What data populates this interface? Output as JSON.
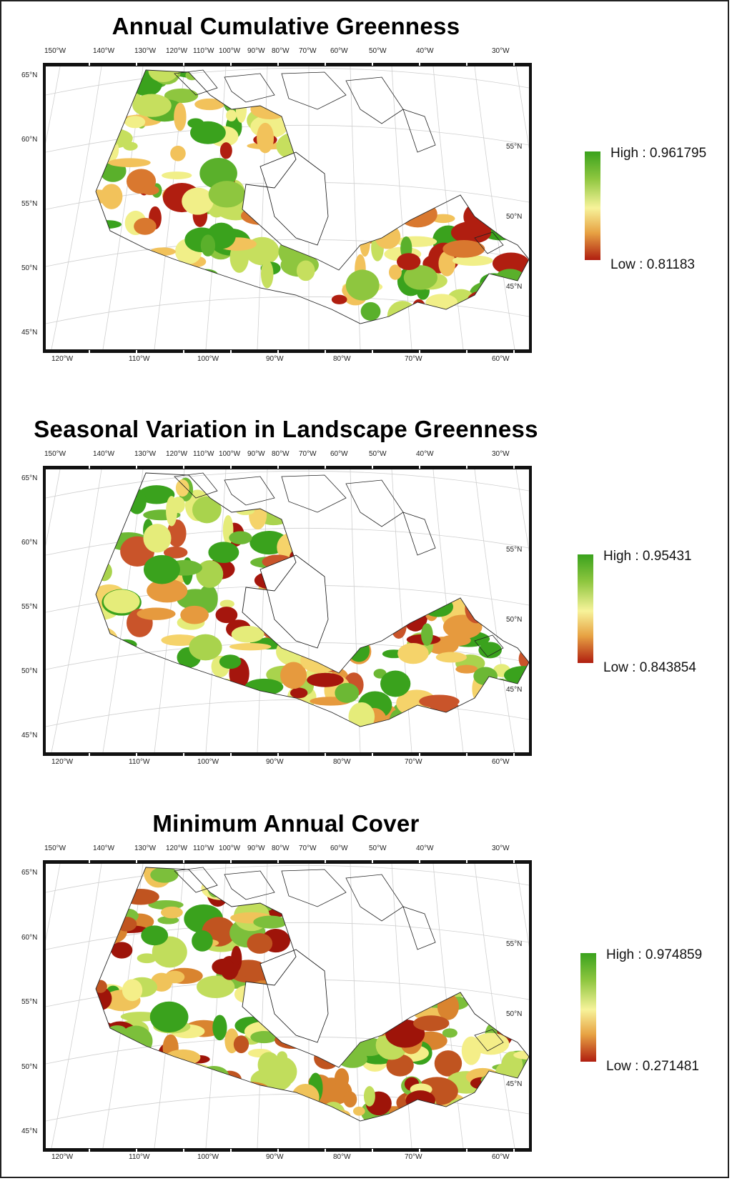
{
  "panels": [
    {
      "title": "Annual Cumulative Greenness",
      "legend": {
        "high": "High : 0.961795",
        "low": "Low : 0.81183"
      }
    },
    {
      "title": "Seasonal Variation in Landscape Greenness",
      "legend": {
        "high": "High : 0.95431",
        "low": "Low : 0.843854"
      }
    },
    {
      "title": "Minimum Annual Cover",
      "legend": {
        "high": "High : 0.974859",
        "low": "Low : 0.271481"
      }
    }
  ],
  "graticule": {
    "top_lon": [
      "150°W",
      "140°W",
      "130°W",
      "120°W",
      "110°W",
      "100°W",
      "90°W",
      "80°W",
      "70°W",
      "60°W",
      "50°W",
      "40°W",
      "30°W"
    ],
    "bottom_lon": [
      "120°W",
      "110°W",
      "100°W",
      "90°W",
      "80°W",
      "70°W",
      "60°W"
    ],
    "left_lat": [
      "65°N",
      "60°N",
      "55°N",
      "50°N",
      "45°N"
    ],
    "right_lat": [
      "55°N",
      "50°N",
      "45°N"
    ]
  },
  "colors": {
    "high": "#3aa21d",
    "mid": "#f7f39a",
    "low": "#b01e10",
    "outline": "#111111"
  }
}
